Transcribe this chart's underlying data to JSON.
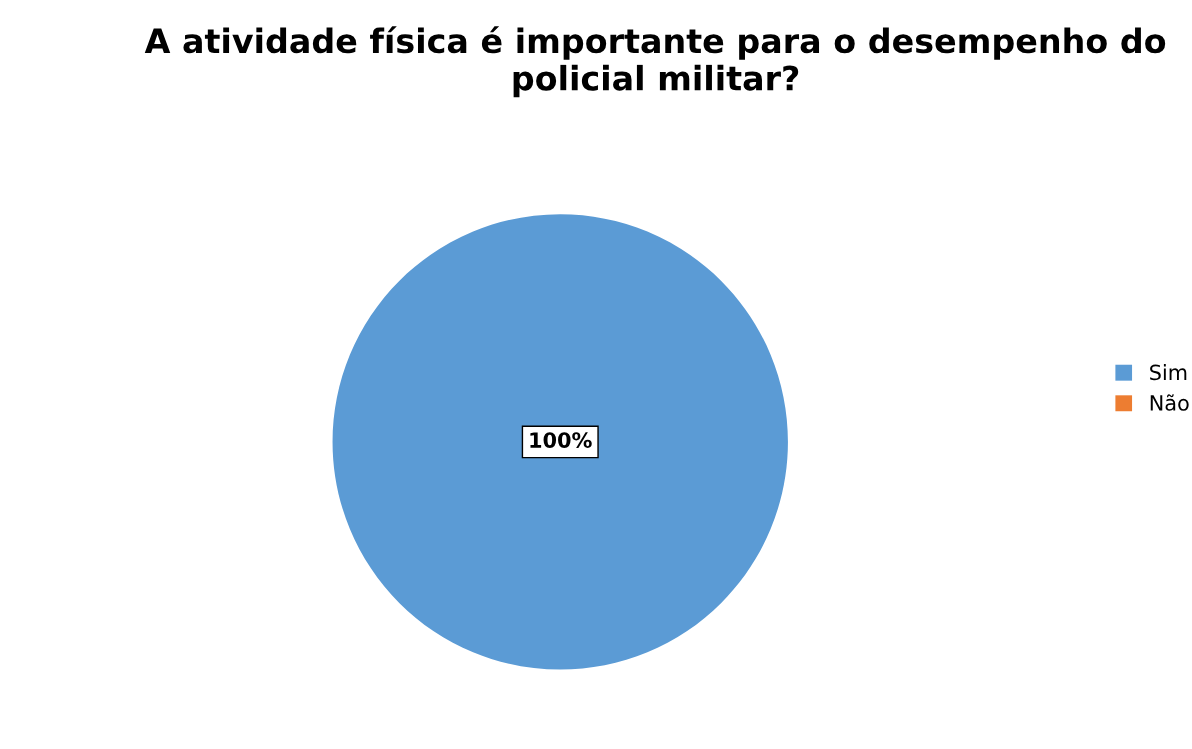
{
  "chart_data": {
    "type": "pie",
    "title": "A atividade física é importante para o desempenho do policial militar?",
    "categories": [
      "Sim",
      "Não"
    ],
    "values": [
      100,
      0
    ],
    "colors": [
      "#5b9bd5",
      "#ed7d31"
    ],
    "value_labels": [
      "100%",
      null
    ],
    "legend": "right"
  }
}
